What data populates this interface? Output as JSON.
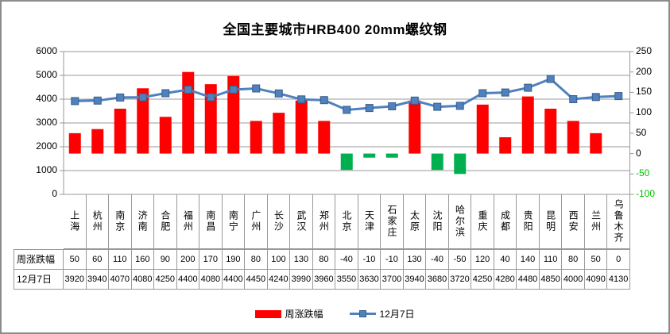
{
  "title": "全国主要城市HRB400 20mm螺纹钢",
  "chart_data": {
    "type": "combo",
    "categories": [
      "上海",
      "杭州",
      "南京",
      "济南",
      "合肥",
      "福州",
      "南昌",
      "南宁",
      "广州",
      "长沙",
      "武汉",
      "郑州",
      "北京",
      "天津",
      "石家庄",
      "太原",
      "沈阳",
      "哈尔滨",
      "重庆",
      "成都",
      "贵阳",
      "昆明",
      "西安",
      "兰州",
      "乌鲁木齐"
    ],
    "series": [
      {
        "name": "周涨跌幅",
        "type": "bar",
        "axis": "right",
        "values": [
          50,
          60,
          110,
          160,
          90,
          200,
          170,
          190,
          80,
          100,
          130,
          80,
          -40,
          -10,
          -10,
          130,
          -40,
          -50,
          120,
          40,
          140,
          110,
          80,
          50,
          0
        ]
      },
      {
        "name": "12月7日",
        "type": "line",
        "axis": "left",
        "values": [
          3920,
          3940,
          4070,
          4080,
          4250,
          4400,
          4080,
          4400,
          4450,
          4240,
          3990,
          3960,
          3550,
          3630,
          3700,
          3940,
          3680,
          3720,
          4250,
          4280,
          4480,
          4850,
          4000,
          4090,
          4130
        ]
      }
    ],
    "left_axis": {
      "min": 0,
      "max": 6000,
      "step": 1000,
      "tick_labels": [
        "0",
        "1000",
        "2000",
        "3000",
        "4000",
        "5000",
        "6000"
      ]
    },
    "right_axis": {
      "min": -100,
      "max": 250,
      "step": 50,
      "tick_labels": [
        "-100",
        "-50",
        "0",
        "50",
        "100",
        "150",
        "200",
        "250"
      ]
    },
    "grid": "horizontal",
    "legend": {
      "position": "bottom",
      "items": [
        {
          "label": "周涨跌幅",
          "swatch": "bar",
          "color": "#FF0000"
        },
        {
          "label": "12月7日",
          "swatch": "line-marker",
          "color": "#4F81BD"
        }
      ]
    },
    "colors": {
      "bar_positive": "#FF0000",
      "bar_negative": "#00B050",
      "line": "#4F81BD",
      "line_marker_border": "#385D8A",
      "grid": "#999999",
      "axis_text": "#000000",
      "axis_negative_label": "#00C000",
      "table_border": "#999999",
      "frame_border": "#8C8C8C"
    }
  }
}
